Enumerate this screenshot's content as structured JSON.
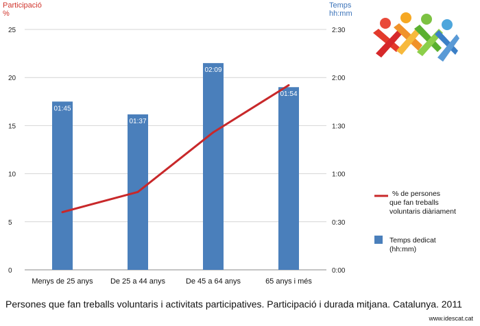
{
  "left_axis_title": "Participació\n%",
  "right_axis_title": "Temps\nhh:mm",
  "caption": "Persones que fan treballs voluntaris i activitats participatives. Participació i durada mitjana. Catalunya. 2011",
  "source": "www.idescat.cat",
  "colors": {
    "bar": "#4a7fbb",
    "line": "#c8282a",
    "grid": "#d4d4d4"
  },
  "logo_icon": "idescat-people-logo",
  "chart_data": {
    "type": "bar",
    "categories": [
      "Menys de 25 anys",
      "De 25 a 44 anys",
      "De 45 a 64 anys",
      "65 anys i més"
    ],
    "y_left": {
      "label": "Participació %",
      "ylim": [
        0,
        25
      ],
      "ticks": [
        "0",
        "5",
        "10",
        "15",
        "20",
        "25"
      ]
    },
    "y_right": {
      "label": "Temps hh:mm",
      "ylim_minutes": [
        0,
        150
      ],
      "ticks": [
        "0:00",
        "0:30",
        "1:00",
        "1:30",
        "2:00",
        "2:30"
      ]
    },
    "series": [
      {
        "name": "Temps dedicat (hh:mm)",
        "legend": "Temps dedicat\n(hh:mm)",
        "type": "bar",
        "axis": "right",
        "values_minutes": [
          105,
          97,
          129,
          114
        ],
        "labels": [
          "01:45",
          "01:37",
          "02:09",
          "01:54"
        ]
      },
      {
        "name": "% de persones que fan treballs voluntaris diàriament",
        "legend": "% de persones\nque fan treballs\nvoluntaris diàriament",
        "type": "line",
        "axis": "left",
        "values": [
          6.0,
          8.1,
          14.3,
          19.2
        ]
      }
    ],
    "grid": true,
    "legend_position": "right"
  }
}
